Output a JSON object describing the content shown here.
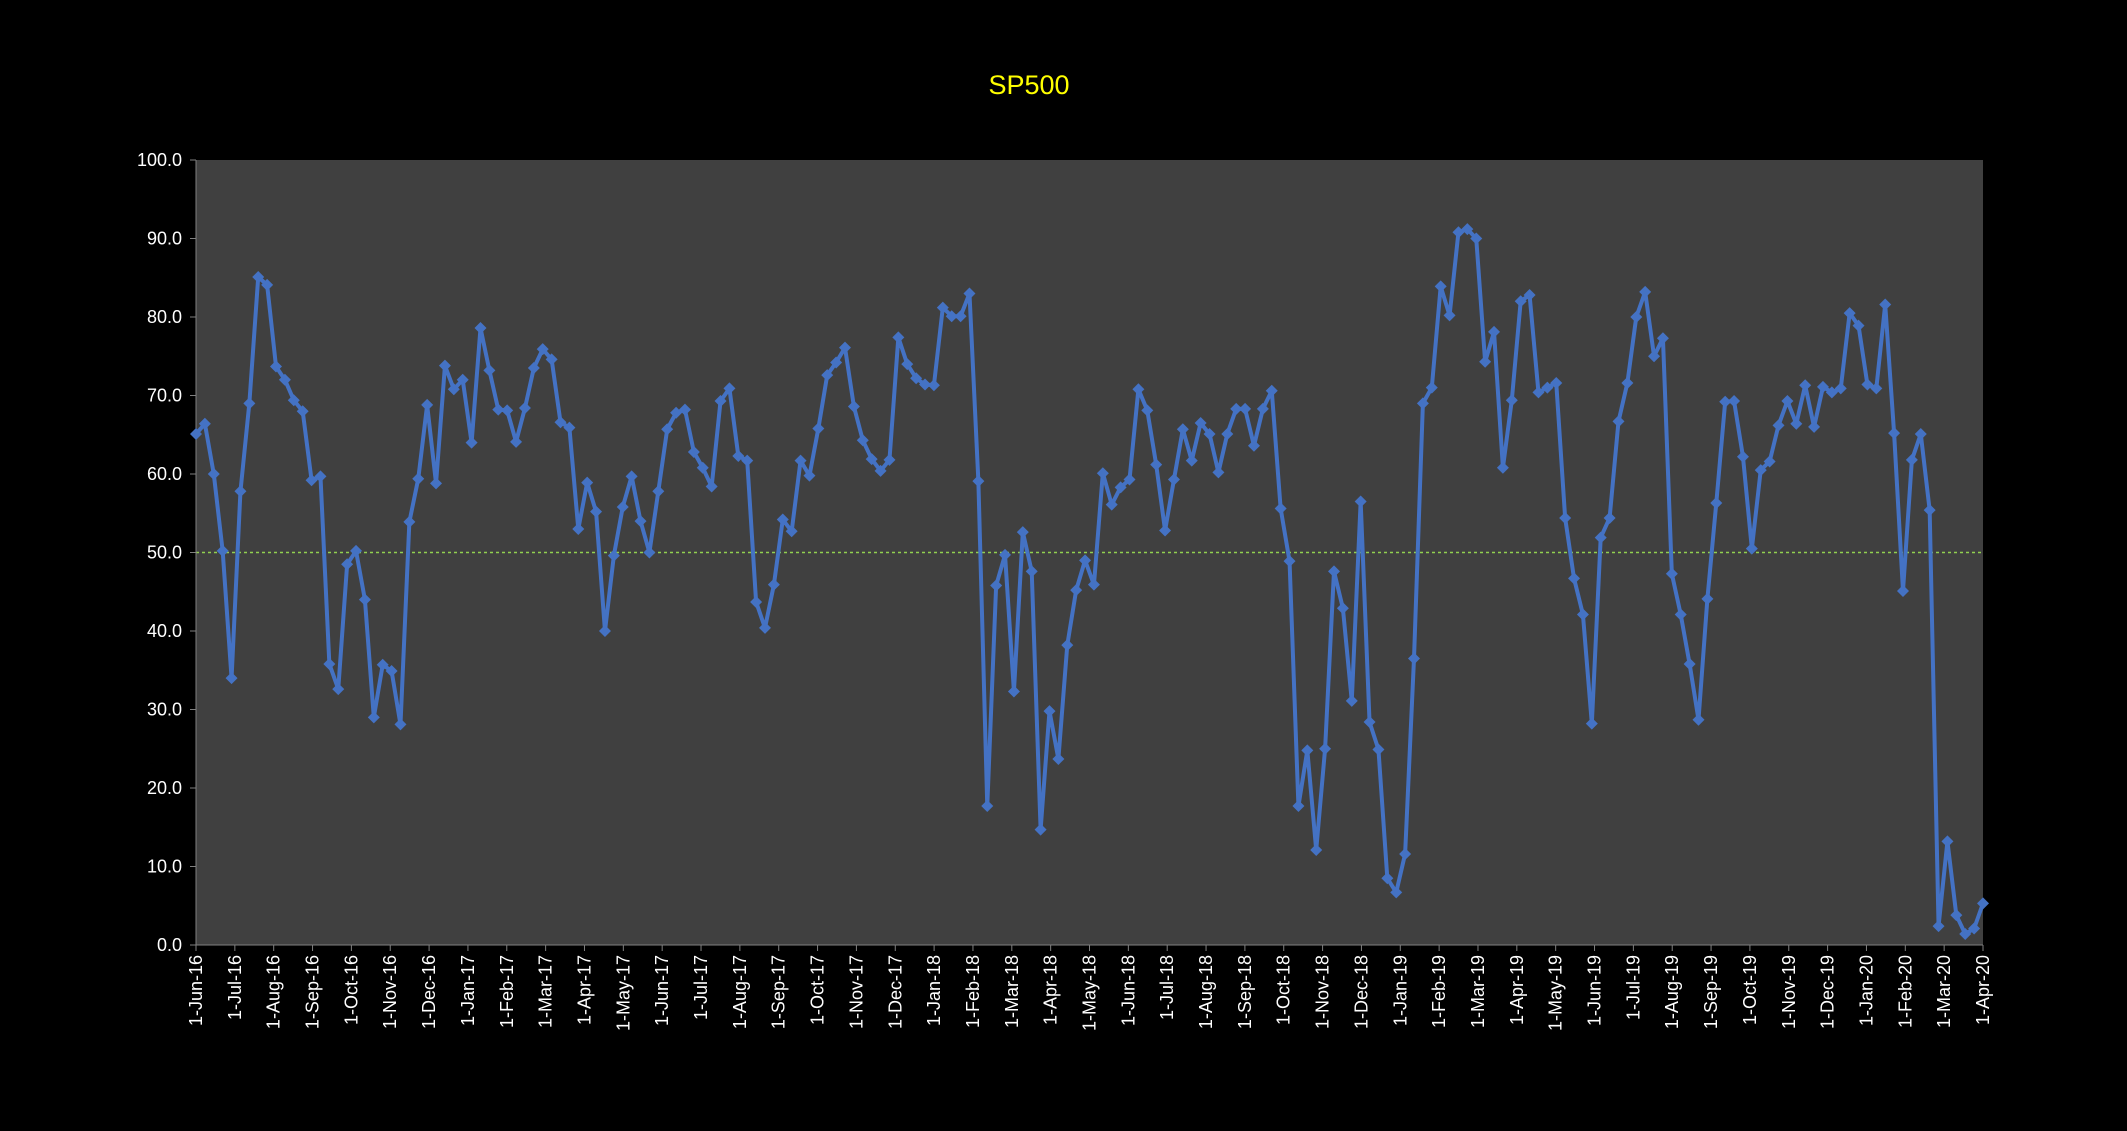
{
  "chart_data": {
    "type": "line",
    "title": "SP500",
    "xlabel": "",
    "ylabel": "",
    "ylim": [
      0,
      100
    ],
    "y_ticks": [
      "0.0",
      "10.0",
      "20.0",
      "30.0",
      "40.0",
      "50.0",
      "60.0",
      "70.0",
      "80.0",
      "90.0",
      "100.0"
    ],
    "x_ticks": [
      "1-Jun-16",
      "1-Jul-16",
      "1-Aug-16",
      "1-Sep-16",
      "1-Oct-16",
      "1-Nov-16",
      "1-Dec-16",
      "1-Jan-17",
      "1-Feb-17",
      "1-Mar-17",
      "1-Apr-17",
      "1-May-17",
      "1-Jun-17",
      "1-Jul-17",
      "1-Aug-17",
      "1-Sep-17",
      "1-Oct-17",
      "1-Nov-17",
      "1-Dec-17",
      "1-Jan-18",
      "1-Feb-18",
      "1-Mar-18",
      "1-Apr-18",
      "1-May-18",
      "1-Jun-18",
      "1-Jul-18",
      "1-Aug-18",
      "1-Sep-18",
      "1-Oct-18",
      "1-Nov-18",
      "1-Dec-18",
      "1-Jan-19",
      "1-Feb-19",
      "1-Mar-19",
      "1-Apr-19",
      "1-May-19",
      "1-Jun-19",
      "1-Jul-19",
      "1-Aug-19",
      "1-Sep-19",
      "1-Oct-19",
      "1-Nov-19",
      "1-Dec-19",
      "1-Jan-20",
      "1-Feb-20",
      "1-Mar-20",
      "1-Apr-20"
    ],
    "reference_line": 50,
    "grid": false,
    "legend": "none",
    "colors": {
      "background": "#000000",
      "plot_area": "#404040",
      "series": "#4472c4",
      "reference_line": "#92d050",
      "title": "#ffff00",
      "text": "#ffffff"
    },
    "series": [
      {
        "marker": "diamond",
        "values": [
          65.1,
          66.4,
          60.0,
          50.2,
          34.0,
          57.8,
          69.0,
          85.1,
          84.1,
          73.7,
          72.0,
          69.4,
          68.0,
          59.2,
          59.7,
          35.8,
          32.6,
          48.5,
          50.2,
          44.0,
          29.0,
          35.7,
          34.9,
          28.1,
          53.9,
          59.4,
          68.8,
          58.8,
          73.8,
          70.8,
          72.0,
          64.0,
          78.6,
          73.2,
          68.2,
          68.1,
          64.1,
          68.4,
          73.5,
          75.9,
          74.6,
          66.6,
          65.9,
          53.0,
          58.9,
          55.2,
          40.0,
          49.6,
          55.8,
          59.7,
          54.0,
          50.0,
          57.8,
          65.7,
          67.8,
          68.2,
          62.8,
          60.8,
          58.4,
          69.3,
          70.9,
          62.3,
          61.7,
          43.7,
          40.4,
          45.9,
          54.2,
          52.7,
          61.7,
          59.8,
          65.8,
          72.6,
          74.2,
          76.1,
          68.6,
          64.3,
          61.9,
          60.4,
          61.8,
          77.4,
          74.0,
          72.2,
          71.4,
          71.3,
          81.2,
          80.1,
          80.1,
          83.0,
          59.1,
          17.7,
          45.8,
          49.7,
          32.3,
          52.6,
          47.6,
          14.7,
          29.8,
          23.7,
          38.2,
          45.2,
          49.0,
          45.9,
          60.1,
          56.1,
          58.3,
          59.3,
          70.8,
          68.1,
          61.2,
          52.8,
          59.3,
          65.7,
          61.7,
          66.5,
          65.1,
          60.2,
          65.1,
          68.3,
          68.3,
          63.6,
          68.3,
          70.6,
          55.6,
          48.9,
          17.7,
          24.8,
          12.1,
          25.0,
          47.6,
          42.9,
          31.1,
          56.5,
          28.4,
          24.9,
          8.5,
          6.7,
          11.6,
          36.5,
          69.0,
          71.0,
          83.9,
          80.2,
          90.8,
          91.2,
          90.0,
          74.3,
          78.1,
          60.8,
          69.4,
          82.0,
          82.8,
          70.4,
          71.0,
          71.6,
          54.4,
          46.7,
          42.1,
          28.2,
          51.9,
          54.4,
          66.7,
          71.6,
          80.0,
          83.2,
          75.0,
          77.3,
          47.3,
          42.1,
          35.8,
          28.7,
          44.1,
          56.3,
          69.2,
          69.3,
          62.2,
          50.5,
          60.5,
          61.6,
          66.2,
          69.3,
          66.4,
          71.3,
          66.0,
          71.1,
          70.4,
          70.9,
          80.5,
          78.9,
          71.4,
          70.9,
          81.6,
          65.2,
          45.1,
          61.8,
          65.1,
          55.4,
          2.4,
          13.2,
          3.8,
          1.4,
          2.1,
          5.3
        ]
      }
    ]
  }
}
